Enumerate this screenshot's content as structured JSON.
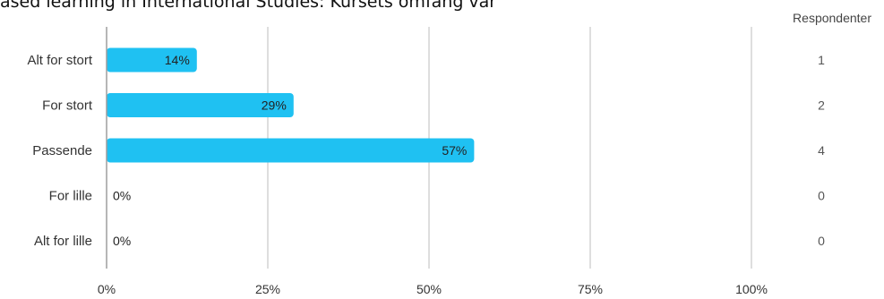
{
  "chart_data": {
    "type": "bar",
    "orientation": "horizontal",
    "title": "ased learning in International Studies: Kursets omfang var",
    "categories": [
      "Alt for stort",
      "For stort",
      "Passende",
      "For lille",
      "Alt for lille"
    ],
    "values": [
      14,
      29,
      57,
      0,
      0
    ],
    "value_labels": [
      "14%",
      "29%",
      "57%",
      "0%",
      "0%"
    ],
    "counts_header": "Respondenter",
    "counts": [
      "1",
      "2",
      "4",
      "0",
      "0"
    ],
    "x_ticks": [
      "0%",
      "25%",
      "50%",
      "75%",
      "100%"
    ],
    "x_tick_values": [
      0,
      25,
      50,
      75,
      100
    ],
    "xlim": [
      0,
      100
    ],
    "grid": true,
    "colors": {
      "bar": "#1fc1f2",
      "grid": "#bdbdbd",
      "axis": "#9e9e9e"
    }
  }
}
